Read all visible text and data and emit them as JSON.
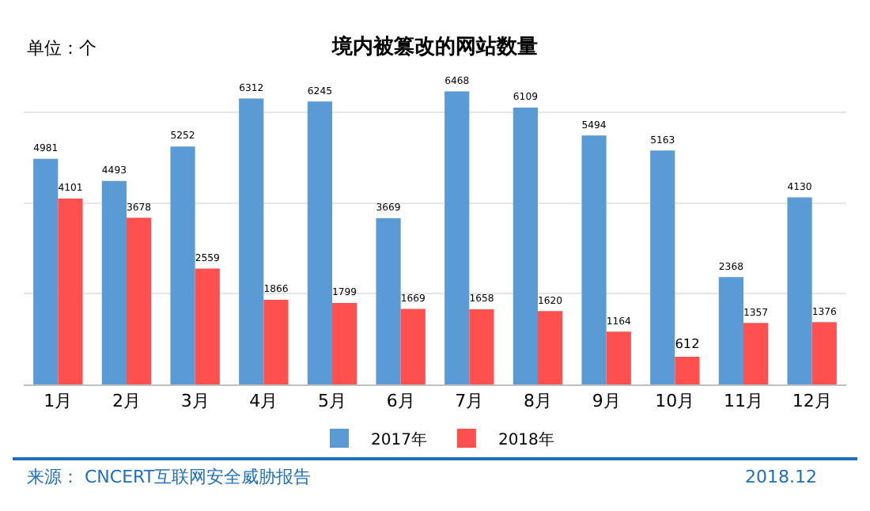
{
  "chart_data": {
    "type": "bar",
    "title": "境内被篡改的网站数量",
    "categories": [
      "1月",
      "2月",
      "3月",
      "4月",
      "5月",
      "6月",
      "7月",
      "8月",
      "9月",
      "10月",
      "11月",
      "12月"
    ],
    "series": [
      {
        "name": "2017年",
        "color": "#5b9bd5",
        "values": [
          4981,
          4493,
          5252,
          6312,
          6245,
          3669,
          6468,
          6109,
          5494,
          5163,
          2368,
          4130
        ]
      },
      {
        "name": "2018年",
        "color": "#ff5050",
        "values": [
          4101,
          3678,
          2559,
          1866,
          1799,
          1669,
          1658,
          1620,
          1164,
          612,
          1357,
          1376
        ]
      }
    ],
    "yticks": [
      {
        "value": 0,
        "label": null
      },
      {
        "value": 2000,
        "label": null
      },
      {
        "value": 4000,
        "label": null
      },
      {
        "value": 6000,
        "label": null
      }
    ],
    "tick_labels": "x",
    "grid": "y",
    "legend": "bottom",
    "data_labels": true,
    "annotations": [
      "单位：个",
      "来源： CNCERT互联网安全威胁报告",
      "2018.12"
    ]
  }
}
